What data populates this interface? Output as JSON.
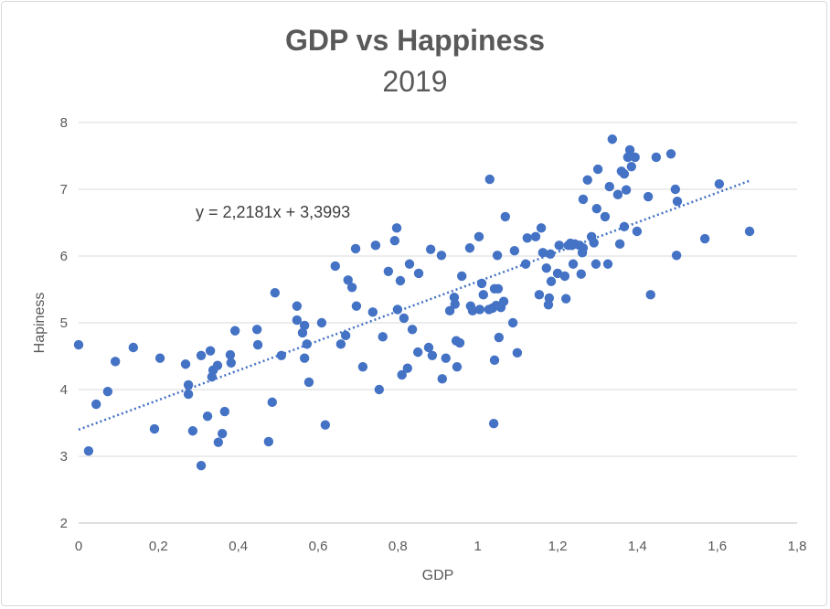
{
  "chart_data": {
    "type": "scatter",
    "title": "GDP vs Happiness",
    "subtitle": "2019",
    "xlabel": "GDP",
    "ylabel": "Hapiness",
    "xlim": [
      0,
      1.8
    ],
    "ylim": [
      2,
      8
    ],
    "xticks": [
      "0",
      "0,2",
      "0,4",
      "0,6",
      "0,8",
      "1",
      "1,2",
      "1,4",
      "1,6",
      "1,8"
    ],
    "yticks": [
      "2",
      "3",
      "4",
      "5",
      "6",
      "7",
      "8"
    ],
    "grid": "horizontal",
    "marker_color": "#4472C4",
    "trendline": {
      "label": "y = 2,2181x + 3,3993",
      "slope": 2.2181,
      "intercept": 3.3993,
      "x_range": [
        0,
        1.684
      ],
      "style": "dotted"
    },
    "points": [
      [
        0,
        4.67
      ],
      [
        0.025,
        3.08
      ],
      [
        0.044,
        3.78
      ],
      [
        0.073,
        3.97
      ],
      [
        0.092,
        4.42
      ],
      [
        0.137,
        4.63
      ],
      [
        0.19,
        3.41
      ],
      [
        0.204,
        4.47
      ],
      [
        0.268,
        4.38
      ],
      [
        0.275,
        4.07
      ],
      [
        0.275,
        3.93
      ],
      [
        0.286,
        3.38
      ],
      [
        0.307,
        4.51
      ],
      [
        0.307,
        2.86
      ],
      [
        0.323,
        3.6
      ],
      [
        0.33,
        4.58
      ],
      [
        0.334,
        4.19
      ],
      [
        0.337,
        4.29
      ],
      [
        0.348,
        4.36
      ],
      [
        0.35,
        3.21
      ],
      [
        0.36,
        3.34
      ],
      [
        0.366,
        3.67
      ],
      [
        0.38,
        4.52
      ],
      [
        0.382,
        4.4
      ],
      [
        0.392,
        4.88
      ],
      [
        0.447,
        4.9
      ],
      [
        0.449,
        4.67
      ],
      [
        0.476,
        3.22
      ],
      [
        0.485,
        3.81
      ],
      [
        0.492,
        5.45
      ],
      [
        0.508,
        4.51
      ],
      [
        0.547,
        5.25
      ],
      [
        0.547,
        5.04
      ],
      [
        0.561,
        4.85
      ],
      [
        0.566,
        4.96
      ],
      [
        0.566,
        4.47
      ],
      [
        0.572,
        4.68
      ],
      [
        0.577,
        4.11
      ],
      [
        0.609,
        5.0
      ],
      [
        0.618,
        3.47
      ],
      [
        0.643,
        5.85
      ],
      [
        0.657,
        4.68
      ],
      [
        0.669,
        4.81
      ],
      [
        0.675,
        5.64
      ],
      [
        0.685,
        5.53
      ],
      [
        0.694,
        6.11
      ],
      [
        0.696,
        5.25
      ],
      [
        0.712,
        4.34
      ],
      [
        0.737,
        5.16
      ],
      [
        0.744,
        6.16
      ],
      [
        0.753,
        4.0
      ],
      [
        0.762,
        4.79
      ],
      [
        0.776,
        5.77
      ],
      [
        0.792,
        6.23
      ],
      [
        0.797,
        6.42
      ],
      [
        0.799,
        5.2
      ],
      [
        0.806,
        5.63
      ],
      [
        0.81,
        4.22
      ],
      [
        0.815,
        5.07
      ],
      [
        0.824,
        4.32
      ],
      [
        0.829,
        5.88
      ],
      [
        0.836,
        4.9
      ],
      [
        0.85,
        4.56
      ],
      [
        0.852,
        5.74
      ],
      [
        0.877,
        4.63
      ],
      [
        0.882,
        6.1
      ],
      [
        0.886,
        4.51
      ],
      [
        0.909,
        6.01
      ],
      [
        0.911,
        4.16
      ],
      [
        0.92,
        4.47
      ],
      [
        0.93,
        5.18
      ],
      [
        0.941,
        5.38
      ],
      [
        0.943,
        5.28
      ],
      [
        0.946,
        4.73
      ],
      [
        0.948,
        4.34
      ],
      [
        0.955,
        4.7
      ],
      [
        0.96,
        5.7
      ],
      [
        0.98,
        6.12
      ],
      [
        0.982,
        5.25
      ],
      [
        0.987,
        5.18
      ],
      [
        1.003,
        6.29
      ],
      [
        1.005,
        5.2
      ],
      [
        1.01,
        5.59
      ],
      [
        1.014,
        5.42
      ],
      [
        1.028,
        5.2
      ],
      [
        1.03,
        7.15
      ],
      [
        1.037,
        5.22
      ],
      [
        1.04,
        3.49
      ],
      [
        1.042,
        4.44
      ],
      [
        1.042,
        5.51
      ],
      [
        1.046,
        5.26
      ],
      [
        1.049,
        6.01
      ],
      [
        1.051,
        5.51
      ],
      [
        1.053,
        4.78
      ],
      [
        1.058,
        5.23
      ],
      [
        1.065,
        5.32
      ],
      [
        1.069,
        6.59
      ],
      [
        1.088,
        5.0
      ],
      [
        1.092,
        6.08
      ],
      [
        1.099,
        4.55
      ],
      [
        1.12,
        5.88
      ],
      [
        1.124,
        6.27
      ],
      [
        1.145,
        6.29
      ],
      [
        1.154,
        5.42
      ],
      [
        1.159,
        6.42
      ],
      [
        1.163,
        6.05
      ],
      [
        1.172,
        5.82
      ],
      [
        1.177,
        5.27
      ],
      [
        1.179,
        5.37
      ],
      [
        1.182,
        6.03
      ],
      [
        1.184,
        5.62
      ],
      [
        1.2,
        5.74
      ],
      [
        1.204,
        6.16
      ],
      [
        1.218,
        5.7
      ],
      [
        1.221,
        5.36
      ],
      [
        1.227,
        6.16
      ],
      [
        1.232,
        6.19
      ],
      [
        1.236,
        6.16
      ],
      [
        1.239,
        5.88
      ],
      [
        1.243,
        6.18
      ],
      [
        1.255,
        6.16
      ],
      [
        1.259,
        5.73
      ],
      [
        1.262,
        6.05
      ],
      [
        1.264,
        6.12
      ],
      [
        1.264,
        6.85
      ],
      [
        1.275,
        7.14
      ],
      [
        1.285,
        6.29
      ],
      [
        1.291,
        6.2
      ],
      [
        1.296,
        5.88
      ],
      [
        1.298,
        6.71
      ],
      [
        1.301,
        7.3
      ],
      [
        1.319,
        6.59
      ],
      [
        1.326,
        5.88
      ],
      [
        1.33,
        7.04
      ],
      [
        1.337,
        7.75
      ],
      [
        1.351,
        6.92
      ],
      [
        1.356,
        6.18
      ],
      [
        1.36,
        7.27
      ],
      [
        1.367,
        7.23
      ],
      [
        1.367,
        6.44
      ],
      [
        1.372,
        6.99
      ],
      [
        1.376,
        7.48
      ],
      [
        1.381,
        7.59
      ],
      [
        1.385,
        7.34
      ],
      [
        1.394,
        7.48
      ],
      [
        1.399,
        6.37
      ],
      [
        1.427,
        6.89
      ],
      [
        1.433,
        5.42
      ],
      [
        1.447,
        7.48
      ],
      [
        1.484,
        7.53
      ],
      [
        1.495,
        7.0
      ],
      [
        1.498,
        6.01
      ],
      [
        1.5,
        6.82
      ],
      [
        1.569,
        6.26
      ],
      [
        1.605,
        7.08
      ],
      [
        1.681,
        6.37
      ]
    ]
  }
}
